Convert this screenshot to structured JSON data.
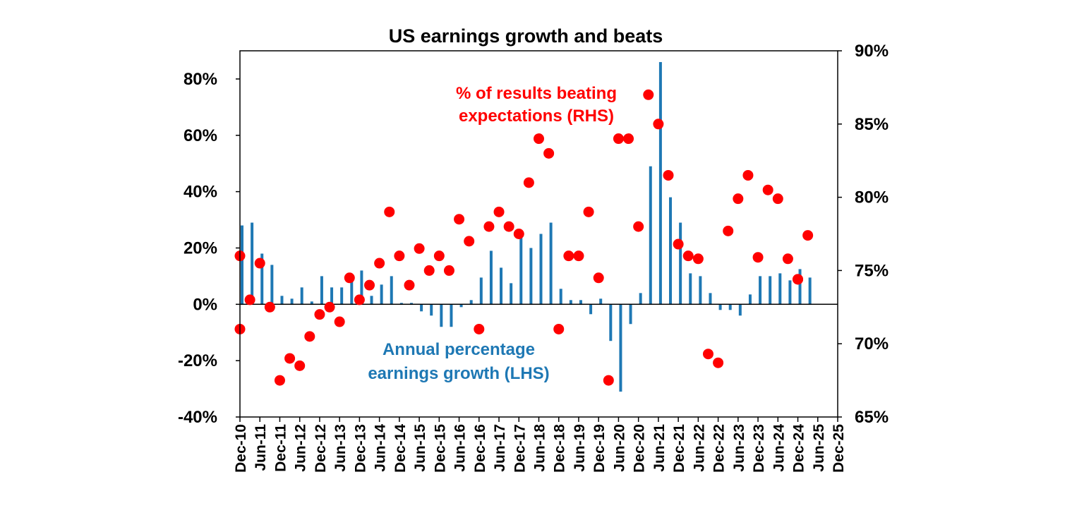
{
  "colors": {
    "bar": "#1e78b4",
    "dot": "#ff0000",
    "axis": "#000000"
  },
  "chart_data": {
    "type": "bar+scatter",
    "title": "US earnings growth and beats",
    "left_axis": {
      "range": [
        -40,
        90
      ],
      "ticks": [
        "80%",
        "60%",
        "40%",
        "20%",
        "0%",
        "-20%",
        "-40%"
      ],
      "tick_values": [
        80,
        60,
        40,
        20,
        0,
        -20,
        -40
      ]
    },
    "right_axis": {
      "range": [
        65,
        90
      ],
      "ticks": [
        "90%",
        "85%",
        "80%",
        "75%",
        "70%",
        "65%"
      ],
      "tick_values": [
        90,
        85,
        80,
        75,
        70,
        65
      ]
    },
    "x_ticks": [
      "Dec-10",
      "Jun-11",
      "Dec-11",
      "Jun-12",
      "Dec-12",
      "Jun-13",
      "Dec-13",
      "Jun-14",
      "Dec-14",
      "Jun-15",
      "Dec-15",
      "Jun-16",
      "Dec-16",
      "Jun-17",
      "Dec-17",
      "Jun-18",
      "Dec-18",
      "Jun-19",
      "Dec-19",
      "Jun-20",
      "Dec-20",
      "Jun-21",
      "Dec-21",
      "Jun-22",
      "Dec-22",
      "Jun-23",
      "Dec-23",
      "Jun-24",
      "Dec-24",
      "Jun-25",
      "Dec-25"
    ],
    "series": [
      {
        "name": "Annual percentage earnings growth (LHS)",
        "type": "bar",
        "axis": "left",
        "x": [
          0,
          0.5,
          1,
          1.5,
          2,
          2.5,
          3,
          3.5,
          4,
          4.5,
          5,
          5.5,
          6,
          6.5,
          7,
          7.5,
          8,
          8.5,
          9,
          9.5,
          10,
          10.5,
          11,
          11.5,
          12,
          12.5,
          13,
          13.5,
          14,
          14.5,
          15,
          15.5,
          16,
          16.5,
          17,
          17.5,
          18,
          18.5,
          19,
          19.5,
          20,
          20.5,
          21,
          21.5,
          22,
          22.5,
          23,
          23.5,
          24,
          24.5,
          25,
          25.5,
          26,
          26.5,
          27,
          27.5,
          28,
          28.5
        ],
        "values": [
          28,
          29,
          18,
          14,
          3,
          2,
          6,
          1,
          10,
          6,
          6,
          9,
          12,
          3,
          7,
          10,
          0.5,
          0.5,
          -2.5,
          -4,
          -8,
          -8,
          -1,
          1.5,
          9.5,
          19,
          13,
          7.5,
          24,
          20,
          25,
          29,
          5.5,
          1.5,
          1.5,
          -3.5,
          2,
          -13,
          -31,
          -7,
          4,
          49,
          86,
          38,
          29,
          11,
          10,
          4,
          -2,
          -2,
          -4,
          3.5,
          10,
          10,
          11,
          8.5,
          12.5,
          9.5
        ]
      },
      {
        "name": "% of results beating expectations (RHS)",
        "type": "scatter",
        "axis": "right",
        "x": [
          0,
          0,
          0.5,
          1,
          1.5,
          2,
          2.5,
          3,
          3.5,
          4,
          4.5,
          5,
          5.5,
          6,
          6.5,
          7,
          7.5,
          8,
          8.5,
          9,
          9.5,
          10,
          10.5,
          11,
          11.5,
          12,
          12.5,
          13,
          13.5,
          14,
          14.5,
          15,
          15.5,
          16,
          16.5,
          17,
          17.5,
          18,
          18.5,
          19,
          19.5,
          20,
          20.5,
          21,
          21.5,
          22,
          22.5,
          23,
          23.5,
          24,
          24.5,
          25,
          25.5,
          26,
          26.5,
          27,
          27.5,
          28,
          28,
          28.5
        ],
        "values": [
          76,
          71,
          73,
          75.5,
          72.5,
          67.5,
          69,
          68.5,
          70.5,
          72,
          72.5,
          71.5,
          74.5,
          73,
          74,
          75.5,
          79,
          76,
          74,
          76.5,
          75,
          76,
          75,
          78.5,
          77,
          71,
          78,
          79,
          78,
          77.5,
          81,
          84,
          83,
          71,
          76,
          76,
          79,
          74.5,
          67.5,
          84,
          84,
          78,
          87,
          85,
          81.5,
          76.8,
          76,
          75.8,
          69.3,
          68.7,
          77.7,
          79.9,
          81.5,
          75.9,
          80.5,
          79.9,
          75.8,
          74.4,
          74.4,
          77.4
        ]
      }
    ],
    "annotations": {
      "dots_label": [
        "% of results beating",
        "expectations (RHS)"
      ],
      "bars_label": [
        "Annual percentage",
        "earnings growth (LHS)"
      ]
    }
  }
}
